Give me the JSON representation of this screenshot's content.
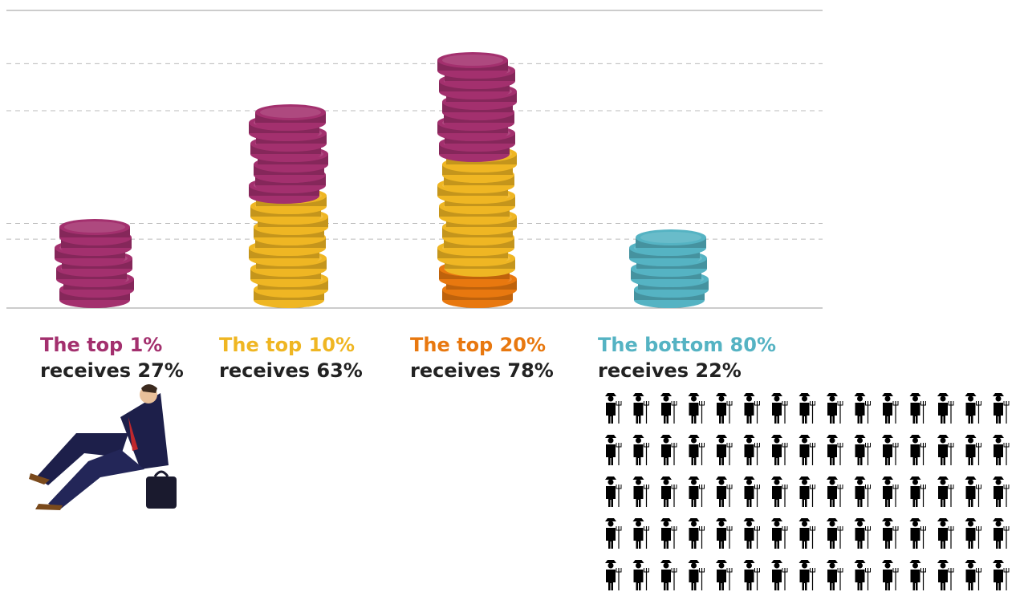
{
  "chart_data": {
    "type": "coin-stack",
    "categories": [
      "The top 1%",
      "The top 10%",
      "The top 20%",
      "The bottom 80%"
    ],
    "values": [
      27,
      63,
      78,
      22
    ],
    "value_labels": [
      "receives 27%",
      "receives 63%",
      "receives 78%",
      "receives 22%"
    ],
    "colors": [
      "#a3306e",
      "#efb623",
      "#e8780f",
      "#55b3c3"
    ],
    "ylim": [
      0,
      95
    ],
    "nested": [
      true,
      true,
      true,
      false
    ]
  }
}
